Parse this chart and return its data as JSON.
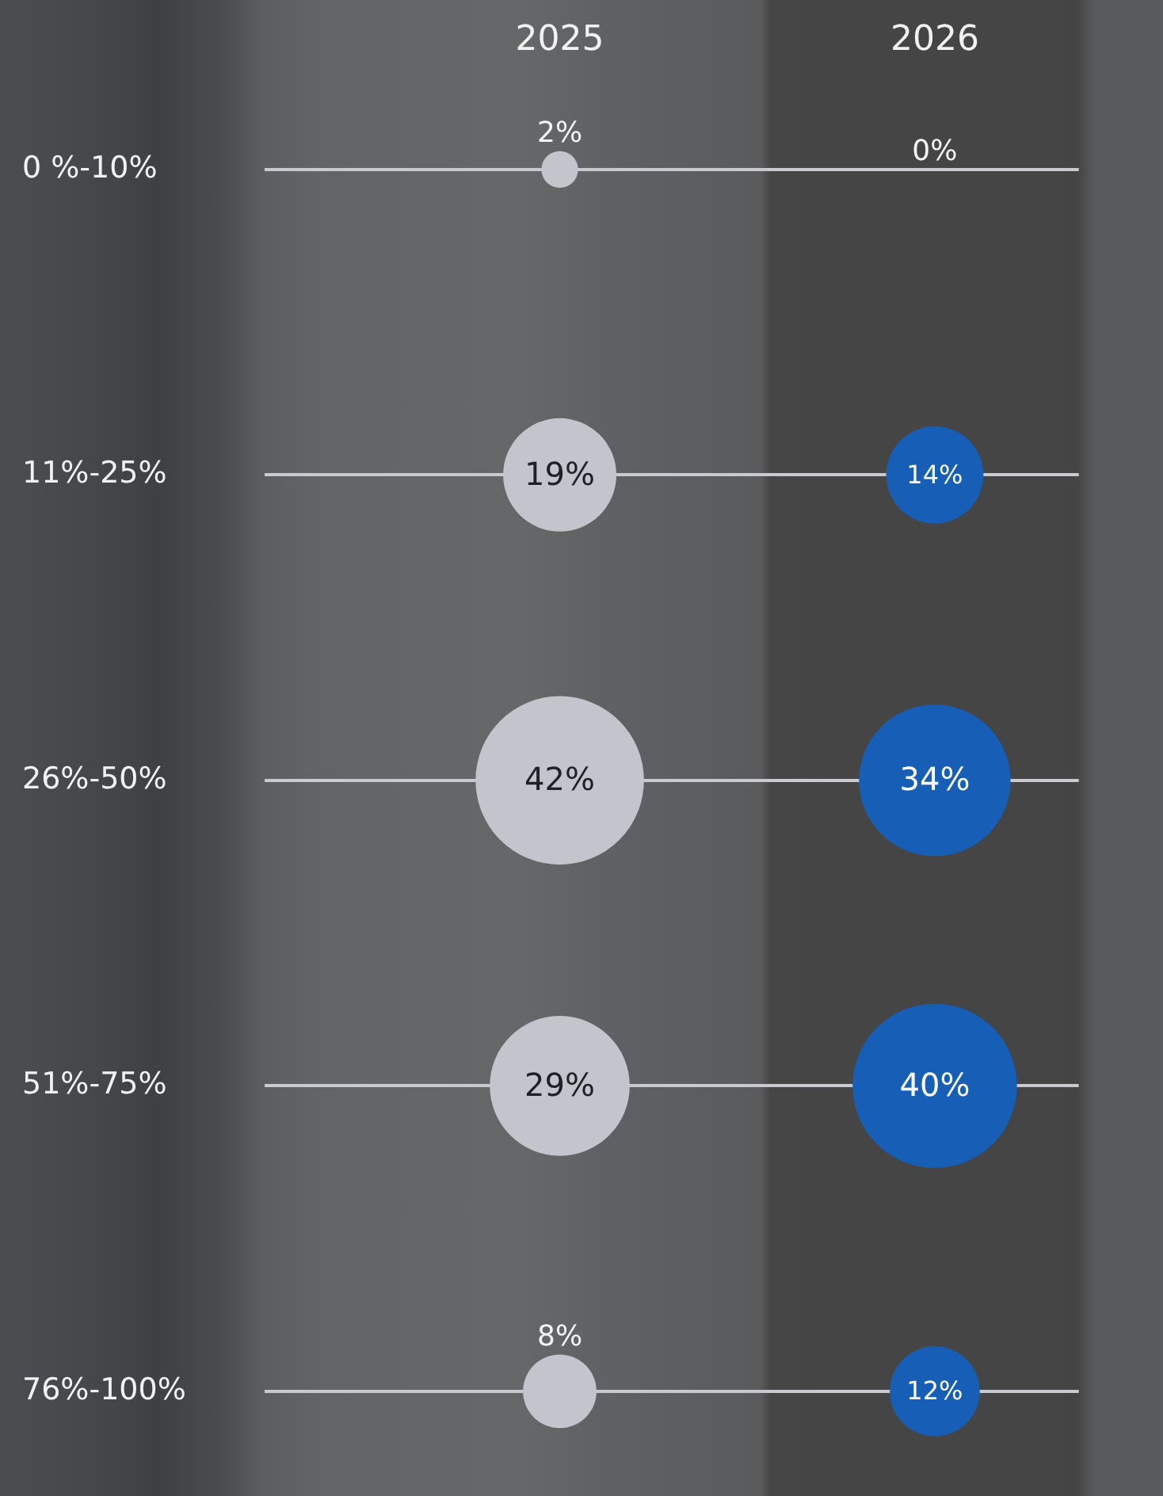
{
  "chart_data": {
    "type": "other",
    "categories": [
      "2025",
      "2026"
    ],
    "y_categories": [
      "0 %-10%",
      "11%-25%",
      "26%-50%",
      "51%-75%",
      "76%-100%"
    ],
    "series": [
      {
        "colors": [
          "#c4c4cc",
          "#175eb6"
        ],
        "values": [
          2,
          0
        ],
        "value_labels": [
          "2%",
          "0%"
        ]
      },
      {
        "colors": [
          "#c4c4cc",
          "#175eb6"
        ],
        "values": [
          19,
          14
        ],
        "value_labels": [
          "19%",
          "14%"
        ]
      },
      {
        "colors": [
          "#c4c4cc",
          "#175eb6"
        ],
        "values": [
          42,
          34
        ],
        "value_labels": [
          "42%",
          "34%"
        ]
      },
      {
        "colors": [
          "#c4c4cc",
          "#175eb6"
        ],
        "values": [
          29,
          40
        ],
        "value_labels": [
          "29%",
          "40%"
        ]
      },
      {
        "colors": [
          "#c4c4cc",
          "#175eb6"
        ],
        "values": [
          8,
          12
        ],
        "value_labels": [
          "8%",
          "12%"
        ]
      }
    ]
  }
}
